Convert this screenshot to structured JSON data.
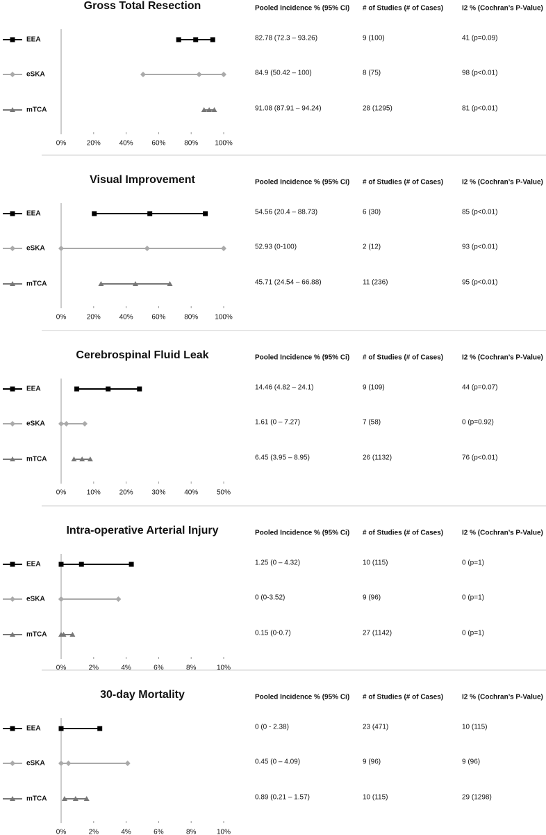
{
  "chart_data": [
    {
      "type": "forest",
      "title": "Gross Total Resection",
      "xlim": [
        0,
        100
      ],
      "xticks": [
        {
          "value": 0,
          "label": "0%"
        },
        {
          "value": 20,
          "label": "20%"
        },
        {
          "value": 40,
          "label": "40%"
        },
        {
          "value": 60,
          "label": "60%"
        },
        {
          "value": 80,
          "label": "80%"
        },
        {
          "value": 100,
          "label": "100%"
        }
      ],
      "series": [
        {
          "name": "EEA",
          "color": "#000000",
          "marker": "square",
          "values": [
            82.78
          ],
          "lower": [
            72.3
          ],
          "upper": [
            93.26
          ]
        },
        {
          "name": "eSKA",
          "color": "#aaaaaa",
          "marker": "diamond",
          "values": [
            84.9
          ],
          "lower": [
            50.42
          ],
          "upper": [
            100
          ]
        },
        {
          "name": "mTCA",
          "color": "#777777",
          "marker": "triangle",
          "values": [
            91.08
          ],
          "lower": [
            87.91
          ],
          "upper": [
            94.24
          ]
        }
      ],
      "table": {
        "columns": [
          "Pooled Incidence % (95% Ci)",
          "# of Studies (# of Cases)",
          "I2 % (Cochran’s P-Value)"
        ],
        "rows": [
          [
            "82.78 (72.3 – 93.26)",
            "9 (100)",
            "41 (p=0.09)"
          ],
          [
            "84.9 (50.42 – 100)",
            "8 (75)",
            "98 (p<0.01)"
          ],
          [
            "91.08 (87.91 – 94.24)",
            "28 (1295)",
            "81 (p<0.01)"
          ]
        ]
      }
    },
    {
      "type": "forest",
      "title": "Visual Improvement",
      "xlim": [
        0,
        100
      ],
      "xticks": [
        {
          "value": 0,
          "label": "0%"
        },
        {
          "value": 20,
          "label": "20%"
        },
        {
          "value": 40,
          "label": "40%"
        },
        {
          "value": 60,
          "label": "60%"
        },
        {
          "value": 80,
          "label": "80%"
        },
        {
          "value": 100,
          "label": "100%"
        }
      ],
      "series": [
        {
          "name": "EEA",
          "color": "#000000",
          "marker": "square",
          "values": [
            54.56
          ],
          "lower": [
            20.4
          ],
          "upper": [
            88.73
          ]
        },
        {
          "name": "eSKA",
          "color": "#aaaaaa",
          "marker": "diamond",
          "values": [
            52.93
          ],
          "lower": [
            0
          ],
          "upper": [
            100
          ]
        },
        {
          "name": "mTCA",
          "color": "#777777",
          "marker": "triangle",
          "values": [
            45.71
          ],
          "lower": [
            24.54
          ],
          "upper": [
            66.88
          ]
        }
      ],
      "table": {
        "columns": [
          "Pooled Incidence % (95% Ci)",
          "# of Studies (# of Cases)",
          "I2 % (Cochran’s P-Value)"
        ],
        "rows": [
          [
            "54.56 (20.4 – 88.73)",
            "6 (30)",
            "85 (p<0.01)"
          ],
          [
            "52.93 (0-100)",
            "2 (12)",
            "93 (p<0.01)"
          ],
          [
            "45.71 (24.54 – 66.88)",
            "11 (236)",
            "95 (p<0.01)"
          ]
        ]
      }
    },
    {
      "type": "forest",
      "title": "Cerebrospinal Fluid Leak",
      "xlim": [
        0,
        50
      ],
      "xticks": [
        {
          "value": 0,
          "label": "0%"
        },
        {
          "value": 10,
          "label": "10%"
        },
        {
          "value": 20,
          "label": "20%"
        },
        {
          "value": 30,
          "label": "30%"
        },
        {
          "value": 40,
          "label": "40%"
        },
        {
          "value": 50,
          "label": "50%"
        }
      ],
      "series": [
        {
          "name": "EEA",
          "color": "#000000",
          "marker": "square",
          "values": [
            14.46
          ],
          "lower": [
            4.82
          ],
          "upper": [
            24.1
          ]
        },
        {
          "name": "eSKA",
          "color": "#aaaaaa",
          "marker": "diamond",
          "values": [
            1.61
          ],
          "lower": [
            0
          ],
          "upper": [
            7.27
          ]
        },
        {
          "name": "mTCA",
          "color": "#777777",
          "marker": "triangle",
          "values": [
            6.45
          ],
          "lower": [
            3.95
          ],
          "upper": [
            8.95
          ]
        }
      ],
      "table": {
        "columns": [
          "Pooled Incidence % (95% Ci)",
          "# of Studies (# of Cases)",
          "I2 % (Cochran’s P-Value)"
        ],
        "rows": [
          [
            "14.46 (4.82 – 24.1)",
            "9 (109)",
            "44 (p=0.07)"
          ],
          [
            "1.61 (0 – 7.27)",
            "7 (58)",
            "0 (p=0.92)"
          ],
          [
            "6.45 (3.95 – 8.95)",
            "26 (1132)",
            "76 (p<0.01)"
          ]
        ]
      }
    },
    {
      "type": "forest",
      "title": "Intra-operative Arterial Injury",
      "xlim": [
        0,
        10
      ],
      "xticks": [
        {
          "value": 0,
          "label": "0%"
        },
        {
          "value": 2,
          "label": "2%"
        },
        {
          "value": 4,
          "label": "4%"
        },
        {
          "value": 6,
          "label": "6%"
        },
        {
          "value": 8,
          "label": "8%"
        },
        {
          "value": 10,
          "label": "10%"
        }
      ],
      "series": [
        {
          "name": "EEA",
          "color": "#000000",
          "marker": "square",
          "values": [
            1.25
          ],
          "lower": [
            0
          ],
          "upper": [
            4.32
          ]
        },
        {
          "name": "eSKA",
          "color": "#aaaaaa",
          "marker": "diamond",
          "values": [
            0
          ],
          "lower": [
            0
          ],
          "upper": [
            3.52
          ]
        },
        {
          "name": "mTCA",
          "color": "#777777",
          "marker": "triangle",
          "values": [
            0.15
          ],
          "lower": [
            0
          ],
          "upper": [
            0.7
          ]
        }
      ],
      "table": {
        "columns": [
          "Pooled Incidence % (95% Ci)",
          "# of Studies (# of Cases)",
          "I2 % (Cochran’s P-Value)"
        ],
        "rows": [
          [
            "1.25 (0 – 4.32)",
            "10 (115)",
            "0 (p=1)"
          ],
          [
            "0 (0-3.52)",
            "9 (96)",
            "0 (p=1)"
          ],
          [
            "0.15 (0-0.7)",
            "27 (1142)",
            "0 (p=1)"
          ]
        ]
      }
    },
    {
      "type": "forest",
      "title": "30-day Mortality",
      "xlim": [
        0,
        10
      ],
      "xticks": [
        {
          "value": 0,
          "label": "0%"
        },
        {
          "value": 2,
          "label": "2%"
        },
        {
          "value": 4,
          "label": "4%"
        },
        {
          "value": 6,
          "label": "6%"
        },
        {
          "value": 8,
          "label": "8%"
        },
        {
          "value": 10,
          "label": "10%"
        }
      ],
      "series": [
        {
          "name": "EEA",
          "color": "#000000",
          "marker": "square",
          "values": [
            0
          ],
          "lower": [
            0
          ],
          "upper": [
            2.38
          ]
        },
        {
          "name": "eSKA",
          "color": "#aaaaaa",
          "marker": "diamond",
          "values": [
            0.45
          ],
          "lower": [
            0
          ],
          "upper": [
            4.09
          ]
        },
        {
          "name": "mTCA",
          "color": "#777777",
          "marker": "triangle",
          "values": [
            0.89
          ],
          "lower": [
            0.21
          ],
          "upper": [
            1.57
          ]
        }
      ],
      "table": {
        "columns": [
          "Pooled Incidence % (95% Ci)",
          "# of Studies (# of Cases)",
          "I2 % (Cochran’s P-Value)"
        ],
        "rows": [
          [
            "0 (0 - 2.38)",
            "23 (471)",
            "10 (115)"
          ],
          [
            "0.45 (0 – 4.09)",
            "9 (96)",
            "9 (96)"
          ],
          [
            "0.89 (0.21 – 1.57)",
            "10 (115)",
            "29 (1298)"
          ]
        ]
      }
    }
  ]
}
